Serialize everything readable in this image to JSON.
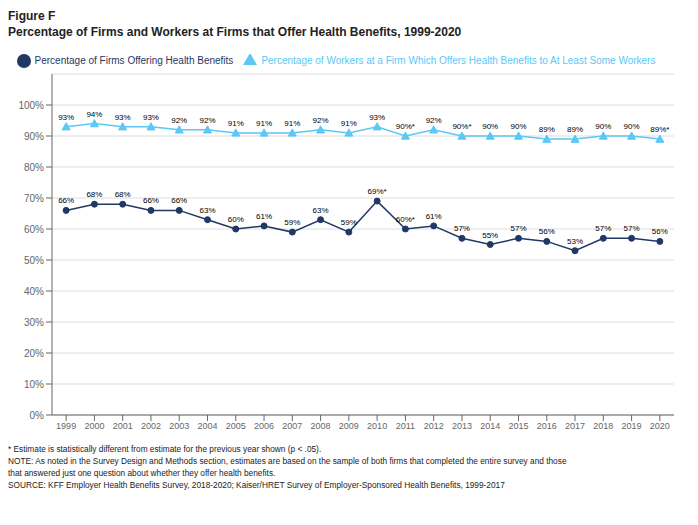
{
  "chart_data": {
    "type": "line",
    "title": "Figure F",
    "subtitle": "Percentage of Firms and Workers at Firms that Offer Health Benefits, 1999-2020",
    "x": [
      1999,
      2000,
      2001,
      2002,
      2003,
      2004,
      2005,
      2006,
      2007,
      2008,
      2009,
      2010,
      2011,
      2012,
      2013,
      2014,
      2015,
      2016,
      2017,
      2018,
      2019,
      2020
    ],
    "xlim": [
      1998.5,
      2020.5
    ],
    "xticks": [
      1999,
      2000,
      2001,
      2002,
      2003,
      2004,
      2005,
      2006,
      2007,
      2008,
      2009,
      2010,
      2011,
      2012,
      2013,
      2014,
      2015,
      2016,
      2017,
      2018,
      2019,
      2020
    ],
    "ylim": [
      0,
      110
    ],
    "yticks": [
      {
        "value": 0,
        "label": "0%"
      },
      {
        "value": 10,
        "label": "10%"
      },
      {
        "value": 20,
        "label": "20%"
      },
      {
        "value": 30,
        "label": "30%"
      },
      {
        "value": 40,
        "label": "40%"
      },
      {
        "value": 50,
        "label": "50%"
      },
      {
        "value": 60,
        "label": "60%"
      },
      {
        "value": 70,
        "label": "70%"
      },
      {
        "value": 80,
        "label": "80%"
      },
      {
        "value": 90,
        "label": "90%"
      },
      {
        "value": 100,
        "label": "100%"
      }
    ],
    "grid": true,
    "legend": "top",
    "data_labels": true,
    "series": [
      {
        "name": "Percentage of Firms Offering Health Benefits",
        "color": "#1f3864",
        "marker": "circle",
        "values": [
          66,
          68,
          68,
          66,
          66,
          63,
          60,
          61,
          59,
          63,
          59,
          69,
          60,
          61,
          57,
          55,
          57,
          56,
          53,
          57,
          57,
          56
        ],
        "value_labels": [
          "66%",
          "68%",
          "68%",
          "66%",
          "66%",
          "63%",
          "60%",
          "61%",
          "59%",
          "63%",
          "59%",
          "69%*",
          "60%*",
          "61%",
          "57%",
          "55%",
          "57%",
          "56%",
          "53%",
          "57%",
          "57%",
          "56%"
        ]
      },
      {
        "name": "Percentage of Workers at a Firm Which Offers Health Benefits to At Least Some Workers",
        "color": "#5bc8f5",
        "marker": "triangle",
        "values": [
          93,
          94,
          93,
          93,
          92,
          92,
          91,
          91,
          91,
          92,
          91,
          93,
          90,
          92,
          90,
          90,
          90,
          89,
          89,
          90,
          90,
          89
        ],
        "value_labels": [
          "93%",
          "94%",
          "93%",
          "93%",
          "92%",
          "92%",
          "91%",
          "91%",
          "91%",
          "92%",
          "91%",
          "93%",
          "90%*",
          "92%",
          "90%*",
          "90%",
          "90%",
          "89%",
          "89%",
          "90%",
          "90%",
          "89%*"
        ]
      }
    ],
    "annotations": [
      "* Estimate is statistically different from estimate for the previous year shown (p < .05).",
      "NOTE: As noted in the Survey Design and Methods section, estimates are based on the sample of both firms that completed the entire survey and those",
      "that answered just one question about whether they offer health benefits.",
      "SOURCE: KFF Employer Health Benefits Survey, 2018-2020; Kaiser/HRET Survey of Employer-Sponsored Health Benefits, 1999-2017"
    ]
  }
}
